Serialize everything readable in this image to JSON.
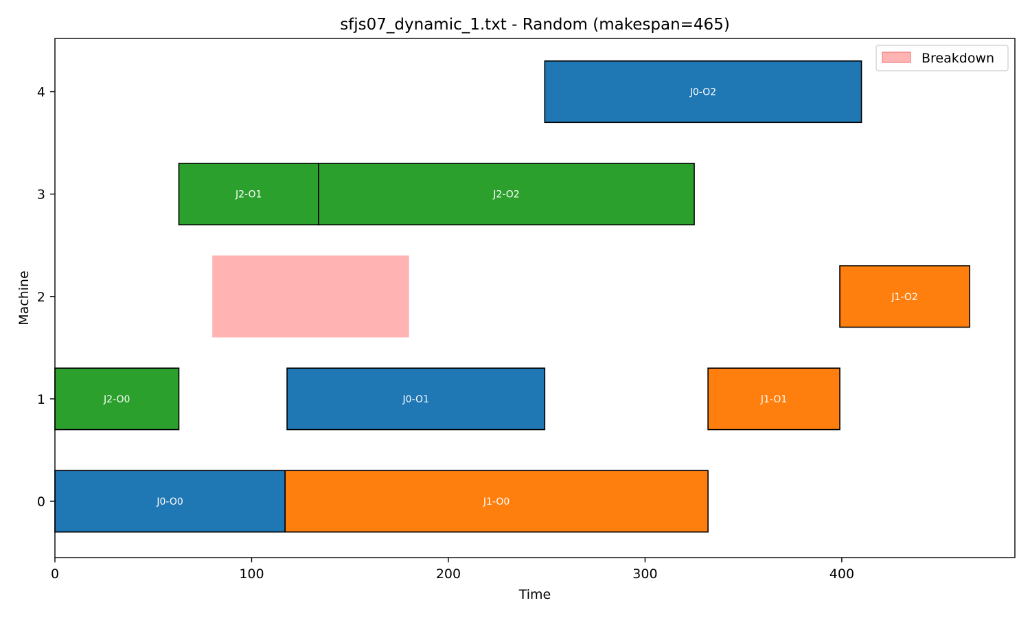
{
  "chart_data": {
    "type": "gantt",
    "title": "sfjs07_dynamic_1.txt - Random (makespan=465)",
    "xlabel": "Time",
    "ylabel": "Machine",
    "xlim": [
      0,
      488
    ],
    "ylim": [
      -0.55,
      4.52
    ],
    "xticks": [
      0,
      100,
      200,
      300,
      400
    ],
    "yticks": [
      0,
      1,
      2,
      3,
      4
    ],
    "makespan": 465,
    "colors": {
      "J0": "#1f77b4",
      "J1": "#ff7f0e",
      "J2": "#2ca02c",
      "breakdown": "#ffb3b3",
      "breakdown_edge": "#f08080"
    },
    "operations": [
      {
        "label": "J0-O0",
        "job": "J0",
        "machine": 0,
        "start": 0,
        "end": 117
      },
      {
        "label": "J1-O0",
        "job": "J1",
        "machine": 0,
        "start": 117,
        "end": 332
      },
      {
        "label": "J2-O0",
        "job": "J2",
        "machine": 1,
        "start": 0,
        "end": 63
      },
      {
        "label": "J0-O1",
        "job": "J0",
        "machine": 1,
        "start": 118,
        "end": 249
      },
      {
        "label": "J1-O1",
        "job": "J1",
        "machine": 1,
        "start": 332,
        "end": 399
      },
      {
        "label": "J1-O2",
        "job": "J1",
        "machine": 2,
        "start": 399,
        "end": 465
      },
      {
        "label": "J2-O1",
        "job": "J2",
        "machine": 3,
        "start": 63,
        "end": 134
      },
      {
        "label": "J2-O2",
        "job": "J2",
        "machine": 3,
        "start": 134,
        "end": 325
      },
      {
        "label": "J0-O2",
        "job": "J0",
        "machine": 4,
        "start": 249,
        "end": 410
      }
    ],
    "breakdowns": [
      {
        "machine": 2,
        "start": 80,
        "end": 180
      }
    ],
    "legend": {
      "entries": [
        "Breakdown"
      ],
      "placement": "upper-right"
    },
    "grid": false
  }
}
